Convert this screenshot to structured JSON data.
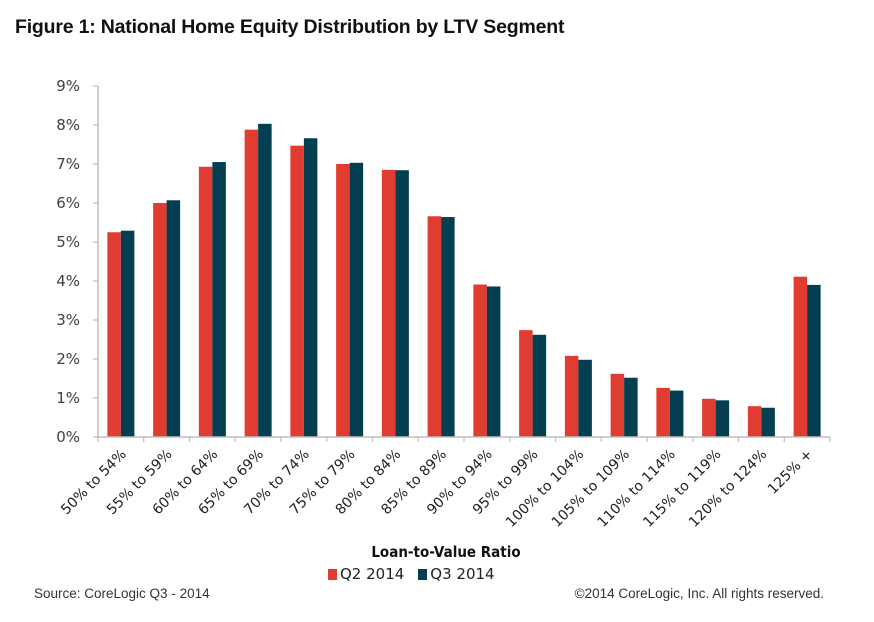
{
  "title": "Figure 1: National Home Equity Distribution by LTV Segment",
  "source": "Source: CoreLogic Q3 - 2014",
  "copyright": "©2014 CoreLogic, Inc. All rights reserved.",
  "colors": {
    "q2": "#E03C31",
    "q3": "#033F51",
    "axis": "#BFBFBF"
  },
  "chart_data": {
    "type": "bar",
    "title": "Figure 1: National Home Equity Distribution by LTV Segment",
    "xlabel": "Loan-to-Value Ratio",
    "ylabel": "",
    "ylim": [
      0,
      9
    ],
    "yticks": [
      "0%",
      "1%",
      "2%",
      "3%",
      "4%",
      "5%",
      "6%",
      "7%",
      "8%",
      "9%"
    ],
    "grid": false,
    "legend_position": "bottom",
    "categories": [
      "50% to 54%",
      "55% to 59%",
      "60% to 64%",
      "65% to 69%",
      "70% to 74%",
      "75% to 79%",
      "80% to 84%",
      "85% to 89%",
      "90% to 94%",
      "95% to 99%",
      "100% to 104%",
      "105% to 109%",
      "110% to 114%",
      "115% to 119%",
      "120% to 124%",
      "125% +"
    ],
    "series": [
      {
        "name": "Q2 2014",
        "values": [
          5.25,
          6.0,
          6.93,
          7.88,
          7.47,
          7.0,
          6.85,
          5.66,
          3.91,
          2.74,
          2.08,
          1.62,
          1.26,
          0.98,
          0.79,
          4.11
        ]
      },
      {
        "name": "Q3 2014",
        "values": [
          5.29,
          6.07,
          7.05,
          8.03,
          7.66,
          7.03,
          6.84,
          5.64,
          3.86,
          2.62,
          1.98,
          1.52,
          1.19,
          0.94,
          0.75,
          3.9
        ]
      }
    ]
  }
}
